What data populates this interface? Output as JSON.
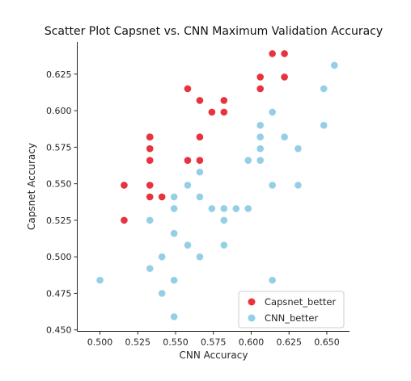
{
  "chart_data": {
    "type": "scatter",
    "title": "Scatter Plot Capsnet vs. CNN Maximum Validation Accuracy",
    "xlabel": "CNN Accuracy",
    "ylabel": "Capsnet Accuracy",
    "xlim": [
      0.485,
      0.665
    ],
    "ylim": [
      0.449,
      0.647
    ],
    "xticks": [
      "0.500",
      "0.525",
      "0.550",
      "0.575",
      "0.600",
      "0.625",
      "0.650"
    ],
    "yticks": [
      "0.450",
      "0.475",
      "0.500",
      "0.525",
      "0.550",
      "0.575",
      "0.600",
      "0.625"
    ],
    "grid": false,
    "legend_position": "bottom-right",
    "series": [
      {
        "name": "Capsnet_better",
        "color": "#e8333f",
        "x": [
          0.614,
          0.622,
          0.606,
          0.606,
          0.622,
          0.558,
          0.566,
          0.582,
          0.574,
          0.582,
          0.533,
          0.533,
          0.533,
          0.566,
          0.558,
          0.566,
          0.533,
          0.516,
          0.533,
          0.541,
          0.533,
          0.516
        ],
        "y": [
          0.639,
          0.639,
          0.623,
          0.615,
          0.623,
          0.615,
          0.607,
          0.607,
          0.599,
          0.599,
          0.582,
          0.574,
          0.566,
          0.582,
          0.566,
          0.566,
          0.549,
          0.549,
          0.541,
          0.541,
          0.582,
          0.525
        ]
      },
      {
        "name": "CNN_better",
        "color": "#95cfe6",
        "x": [
          0.655,
          0.648,
          0.614,
          0.648,
          0.606,
          0.622,
          0.606,
          0.606,
          0.631,
          0.598,
          0.606,
          0.566,
          0.558,
          0.614,
          0.631,
          0.549,
          0.566,
          0.574,
          0.582,
          0.59,
          0.598,
          0.549,
          0.533,
          0.582,
          0.549,
          0.558,
          0.582,
          0.541,
          0.566,
          0.533,
          0.5,
          0.549,
          0.614,
          0.541,
          0.549
        ],
        "y": [
          0.631,
          0.615,
          0.599,
          0.59,
          0.59,
          0.582,
          0.582,
          0.574,
          0.574,
          0.566,
          0.566,
          0.558,
          0.549,
          0.549,
          0.549,
          0.541,
          0.541,
          0.533,
          0.533,
          0.533,
          0.533,
          0.533,
          0.525,
          0.525,
          0.516,
          0.508,
          0.508,
          0.5,
          0.5,
          0.492,
          0.484,
          0.484,
          0.484,
          0.475,
          0.459
        ]
      }
    ]
  }
}
